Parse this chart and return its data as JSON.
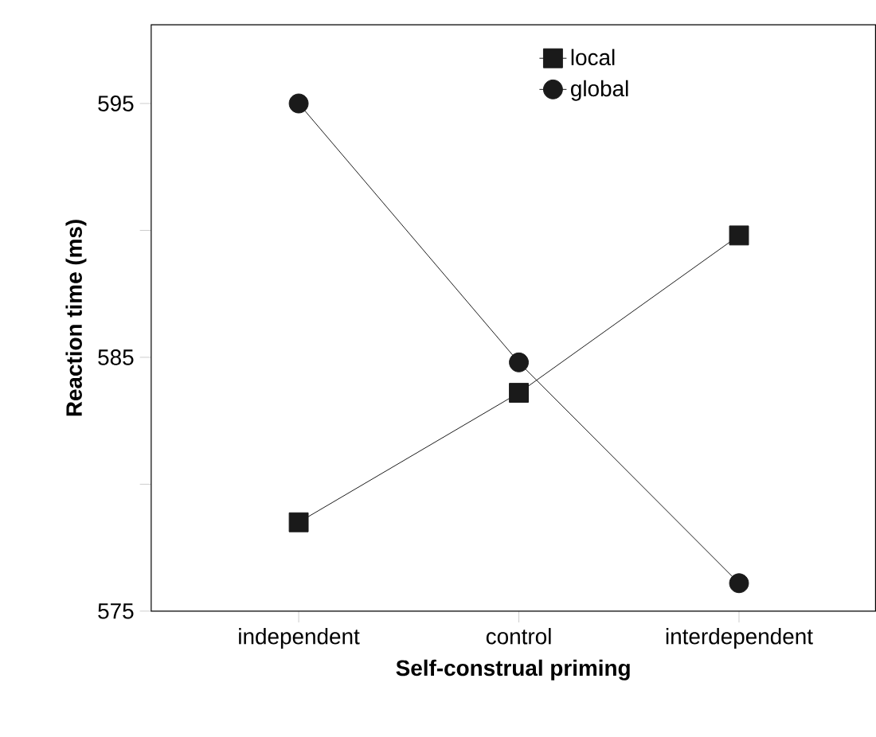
{
  "chart_data": {
    "type": "line",
    "xlabel": "Self-construal priming",
    "ylabel": "Reaction time (ms)",
    "categories": [
      "independent",
      "control",
      "interdependent"
    ],
    "series": [
      {
        "name": "local",
        "color": "#1a1a1a",
        "marker": "square",
        "values": [
          578.5,
          583.6,
          589.8
        ]
      },
      {
        "name": "global",
        "color": "#1a1a1a",
        "marker": "circle",
        "values": [
          595.0,
          584.8,
          576.1
        ]
      }
    ],
    "ylim": [
      575,
      598.1
    ],
    "yticks": [
      575,
      {
        "value": 580,
        "label": null
      },
      585,
      {
        "value": 590,
        "label": null
      },
      595
    ],
    "legend": "top",
    "grid": false,
    "line_style": "solid"
  }
}
